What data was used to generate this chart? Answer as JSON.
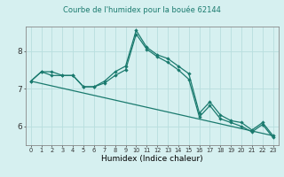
{
  "title": "Courbe de l'humidex pour la bouée 62144",
  "xlabel": "Humidex (Indice chaleur)",
  "ylabel": "",
  "background_color": "#d6f0f0",
  "grid_color": "#b8dede",
  "line_color": "#1a7a6e",
  "x_ticks": [
    0,
    1,
    2,
    3,
    4,
    5,
    6,
    7,
    8,
    9,
    10,
    11,
    12,
    13,
    14,
    15,
    16,
    17,
    18,
    19,
    20,
    21,
    22,
    23
  ],
  "y_ticks": [
    6,
    7,
    8
  ],
  "xlim": [
    -0.5,
    23.5
  ],
  "ylim": [
    5.5,
    8.65
  ],
  "series1_x": [
    0,
    1,
    2,
    3,
    4,
    5,
    6,
    7,
    8,
    9,
    10,
    11,
    12,
    13,
    14,
    15,
    16,
    17,
    18,
    19,
    20,
    21,
    22,
    23
  ],
  "series1_y": [
    7.2,
    7.45,
    7.45,
    7.35,
    7.35,
    7.05,
    7.05,
    7.2,
    7.45,
    7.6,
    8.55,
    8.1,
    7.9,
    7.8,
    7.6,
    7.4,
    6.35,
    6.65,
    6.3,
    6.15,
    6.1,
    5.9,
    6.1,
    5.75
  ],
  "series2_x": [
    0,
    1,
    2,
    3,
    4,
    5,
    6,
    7,
    8,
    9,
    10,
    11,
    12,
    13,
    14,
    15,
    16,
    17,
    18,
    19,
    20,
    21,
    22,
    23
  ],
  "series2_y": [
    7.2,
    7.45,
    7.35,
    7.35,
    7.35,
    7.05,
    7.05,
    7.15,
    7.35,
    7.5,
    8.45,
    8.05,
    7.85,
    7.7,
    7.5,
    7.25,
    6.25,
    6.55,
    6.2,
    6.1,
    6.0,
    5.85,
    6.05,
    5.7
  ],
  "series3_x": [
    0,
    23
  ],
  "series3_y": [
    7.2,
    5.75
  ],
  "title_fontsize": 6.0,
  "xlabel_fontsize": 6.5,
  "xtick_fontsize": 4.8,
  "ytick_fontsize": 6.5
}
